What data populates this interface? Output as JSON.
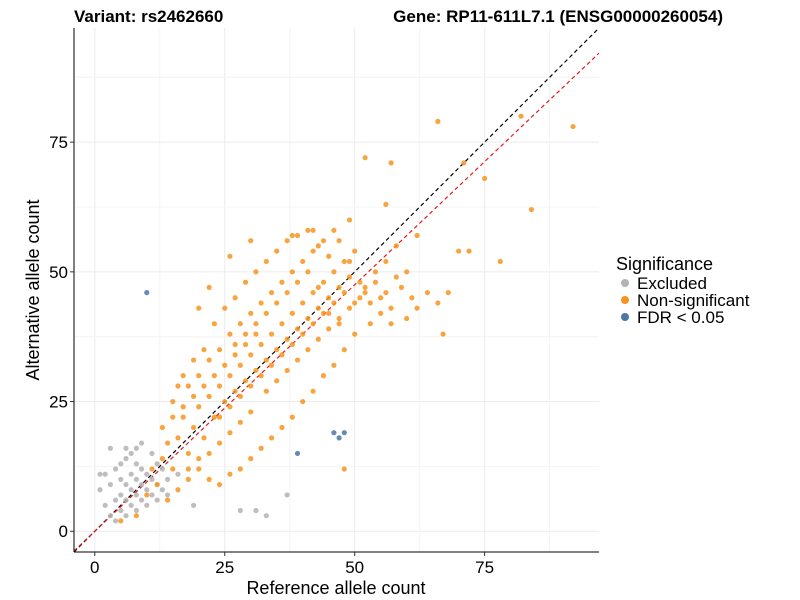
{
  "chart_data": {
    "type": "scatter",
    "title_left": "Variant: rs2462660",
    "title_right": "Gene: RP11-611L7.1 (ENSG00000260054)",
    "xlabel": "Reference allele count",
    "ylabel": "Alternative allele count",
    "xlim": [
      -4,
      97
    ],
    "ylim": [
      -4,
      97
    ],
    "x_ticks": [
      0,
      25,
      50,
      75
    ],
    "y_ticks": [
      0,
      25,
      50,
      75
    ],
    "x_tick_labels": [
      "0",
      "25",
      "50",
      "75"
    ],
    "y_tick_labels": [
      "0",
      "25",
      "50",
      "75"
    ],
    "grid": true,
    "reference_lines": [
      {
        "name": "identity",
        "slope": 1.0,
        "intercept": 0,
        "color": "#000000",
        "style": "dashed"
      },
      {
        "name": "fit",
        "slope": 0.95,
        "intercept": 0,
        "color": "#e41a1c",
        "style": "dashed"
      }
    ],
    "legend": {
      "title": "Significance",
      "position": "right",
      "entries": [
        {
          "label": "Excluded",
          "color": "#b3b3b3"
        },
        {
          "label": "Non-significant",
          "color": "#f7941d"
        },
        {
          "label": "FDR < 0.05",
          "color": "#4a76a8"
        }
      ]
    },
    "series": [
      {
        "name": "Excluded",
        "color": "#b3b3b3",
        "points": [
          [
            1,
            8
          ],
          [
            2,
            5
          ],
          [
            2,
            11
          ],
          [
            3,
            3
          ],
          [
            3,
            9
          ],
          [
            4,
            6
          ],
          [
            4,
            12
          ],
          [
            5,
            4
          ],
          [
            5,
            7
          ],
          [
            5,
            10
          ],
          [
            5,
            13
          ],
          [
            6,
            6
          ],
          [
            6,
            9
          ],
          [
            6,
            14
          ],
          [
            7,
            5
          ],
          [
            7,
            8
          ],
          [
            7,
            11
          ],
          [
            7,
            15
          ],
          [
            8,
            4
          ],
          [
            8,
            7
          ],
          [
            8,
            10
          ],
          [
            8,
            13
          ],
          [
            8,
            16
          ],
          [
            9,
            6
          ],
          [
            9,
            9
          ],
          [
            9,
            12
          ],
          [
            9,
            17
          ],
          [
            10,
            5
          ],
          [
            10,
            8
          ],
          [
            10,
            11
          ],
          [
            11,
            7
          ],
          [
            11,
            10
          ],
          [
            11,
            15
          ],
          [
            12,
            6
          ],
          [
            12,
            9
          ],
          [
            13,
            8
          ],
          [
            13,
            12
          ],
          [
            14,
            10
          ],
          [
            4,
            2
          ],
          [
            6,
            3
          ],
          [
            19,
            5
          ],
          [
            28,
            4
          ],
          [
            31,
            4
          ],
          [
            33,
            3
          ],
          [
            37,
            7
          ],
          [
            3,
            16
          ],
          [
            6,
            16
          ],
          [
            1,
            11
          ],
          [
            12,
            13
          ],
          [
            14,
            7
          ],
          [
            16,
            11
          ]
        ]
      },
      {
        "name": "Non-significant",
        "color": "#f7941d",
        "points": [
          [
            5,
            2
          ],
          [
            8,
            3
          ],
          [
            10,
            7
          ],
          [
            12,
            9
          ],
          [
            11,
            12
          ],
          [
            13,
            14
          ],
          [
            15,
            12
          ],
          [
            14,
            17
          ],
          [
            13,
            20
          ],
          [
            16,
            18
          ],
          [
            18,
            15
          ],
          [
            17,
            22
          ],
          [
            15,
            25
          ],
          [
            19,
            20
          ],
          [
            20,
            24
          ],
          [
            18,
            28
          ],
          [
            21,
            18
          ],
          [
            22,
            26
          ],
          [
            20,
            30
          ],
          [
            23,
            22
          ],
          [
            24,
            28
          ],
          [
            22,
            33
          ],
          [
            25,
            25
          ],
          [
            26,
            30
          ],
          [
            24,
            35
          ],
          [
            27,
            27
          ],
          [
            28,
            32
          ],
          [
            26,
            38
          ],
          [
            29,
            29
          ],
          [
            30,
            34
          ],
          [
            28,
            40
          ],
          [
            31,
            31
          ],
          [
            32,
            36
          ],
          [
            30,
            42
          ],
          [
            33,
            33
          ],
          [
            34,
            38
          ],
          [
            32,
            44
          ],
          [
            35,
            35
          ],
          [
            36,
            40
          ],
          [
            34,
            46
          ],
          [
            37,
            37
          ],
          [
            38,
            42
          ],
          [
            36,
            48
          ],
          [
            39,
            39
          ],
          [
            40,
            44
          ],
          [
            38,
            50
          ],
          [
            41,
            41
          ],
          [
            42,
            46
          ],
          [
            40,
            52
          ],
          [
            43,
            43
          ],
          [
            44,
            48
          ],
          [
            42,
            54
          ],
          [
            45,
            45
          ],
          [
            46,
            50
          ],
          [
            44,
            56
          ],
          [
            47,
            47
          ],
          [
            48,
            52
          ],
          [
            46,
            58
          ],
          [
            49,
            49
          ],
          [
            50,
            54
          ],
          [
            52,
            47
          ],
          [
            54,
            50
          ],
          [
            56,
            52
          ],
          [
            58,
            55
          ],
          [
            60,
            50
          ],
          [
            62,
            57
          ],
          [
            55,
            45
          ],
          [
            53,
            40
          ],
          [
            57,
            43
          ],
          [
            59,
            47
          ],
          [
            61,
            45
          ],
          [
            50,
            38
          ],
          [
            48,
            35
          ],
          [
            46,
            32
          ],
          [
            44,
            30
          ],
          [
            42,
            27
          ],
          [
            40,
            25
          ],
          [
            38,
            22
          ],
          [
            36,
            20
          ],
          [
            34,
            18
          ],
          [
            32,
            16
          ],
          [
            30,
            14
          ],
          [
            28,
            12
          ],
          [
            26,
            11
          ],
          [
            24,
            9
          ],
          [
            22,
            10
          ],
          [
            20,
            12
          ],
          [
            18,
            10
          ],
          [
            16,
            8
          ],
          [
            14,
            6
          ],
          [
            21,
            35
          ],
          [
            19,
            33
          ],
          [
            17,
            30
          ],
          [
            16,
            28
          ],
          [
            23,
            40
          ],
          [
            25,
            43
          ],
          [
            27,
            45
          ],
          [
            29,
            48
          ],
          [
            31,
            50
          ],
          [
            33,
            52
          ],
          [
            35,
            54
          ],
          [
            37,
            56
          ],
          [
            39,
            57
          ],
          [
            41,
            58
          ],
          [
            43,
            55
          ],
          [
            45,
            53
          ],
          [
            47,
            56
          ],
          [
            49,
            52
          ],
          [
            51,
            48
          ],
          [
            53,
            44
          ],
          [
            55,
            42
          ],
          [
            57,
            40
          ],
          [
            60,
            41
          ],
          [
            62,
            43
          ],
          [
            64,
            46
          ],
          [
            66,
            44
          ],
          [
            68,
            46
          ],
          [
            66,
            79
          ],
          [
            67,
            38
          ],
          [
            52,
            72
          ],
          [
            57,
            71
          ],
          [
            56,
            63
          ],
          [
            71,
            71
          ],
          [
            70,
            54
          ],
          [
            72,
            54
          ],
          [
            75,
            68
          ],
          [
            78,
            52
          ],
          [
            82,
            80
          ],
          [
            84,
            62
          ],
          [
            92,
            78
          ],
          [
            48,
            12
          ],
          [
            49,
            60
          ],
          [
            42,
            58
          ],
          [
            38,
            57
          ],
          [
            30,
            56
          ],
          [
            26,
            53
          ],
          [
            22,
            47
          ],
          [
            20,
            43
          ],
          [
            27,
            36
          ],
          [
            29,
            38
          ],
          [
            31,
            40
          ],
          [
            33,
            42
          ],
          [
            35,
            44
          ],
          [
            37,
            46
          ],
          [
            39,
            48
          ],
          [
            41,
            50
          ],
          [
            43,
            47
          ],
          [
            45,
            42
          ],
          [
            47,
            40
          ],
          [
            49,
            43
          ],
          [
            51,
            45
          ],
          [
            33,
            27
          ],
          [
            35,
            29
          ],
          [
            37,
            31
          ],
          [
            39,
            33
          ],
          [
            41,
            35
          ],
          [
            43,
            37
          ],
          [
            45,
            39
          ],
          [
            47,
            41
          ],
          [
            30,
            23
          ],
          [
            28,
            21
          ],
          [
            26,
            19
          ],
          [
            24,
            17
          ],
          [
            22,
            15
          ],
          [
            20,
            14
          ],
          [
            18,
            12
          ],
          [
            25,
            32
          ],
          [
            27,
            34
          ],
          [
            29,
            36
          ],
          [
            31,
            38
          ],
          [
            23,
            30
          ],
          [
            21,
            28
          ],
          [
            19,
            26
          ],
          [
            17,
            24
          ],
          [
            15,
            22
          ],
          [
            24,
            22
          ],
          [
            26,
            24
          ],
          [
            28,
            26
          ],
          [
            30,
            28
          ],
          [
            32,
            30
          ],
          [
            34,
            32
          ],
          [
            36,
            34
          ],
          [
            38,
            36
          ],
          [
            40,
            38
          ],
          [
            42,
            40
          ],
          [
            44,
            42
          ],
          [
            46,
            44
          ],
          [
            48,
            46
          ],
          [
            50,
            44
          ],
          [
            52,
            46
          ],
          [
            54,
            48
          ],
          [
            56,
            46
          ],
          [
            58,
            49
          ]
        ]
      },
      {
        "name": "FDR < 0.05",
        "color": "#4a76a8",
        "points": [
          [
            10,
            46
          ],
          [
            39,
            15
          ],
          [
            46,
            19
          ],
          [
            47,
            18
          ],
          [
            48,
            19
          ]
        ]
      }
    ]
  }
}
